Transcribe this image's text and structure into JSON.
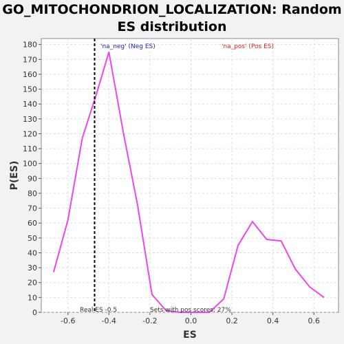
{
  "chart_data": {
    "type": "line",
    "title_line1": "GO_MITOCHONDRION_LOCALIZATION: Random",
    "title_line2": "ES distribution",
    "xlabel": "ES",
    "ylabel": "P(ES)",
    "xlim": [
      -0.73,
      0.72
    ],
    "ylim": [
      0,
      184
    ],
    "xticks": [
      -0.6,
      -0.4,
      -0.2,
      0.0,
      0.2,
      0.4,
      0.6
    ],
    "xtick_labels": [
      "-0.6",
      "-0.4",
      "-0.2",
      "0.0",
      "0.2",
      "0.4",
      "0.6"
    ],
    "yticks": [
      0,
      10,
      20,
      30,
      40,
      50,
      60,
      70,
      80,
      90,
      100,
      110,
      120,
      130,
      140,
      150,
      160,
      170,
      180
    ],
    "ytick_labels": [
      "0",
      "10",
      "20",
      "30",
      "40",
      "50",
      "60",
      "70",
      "80",
      "90",
      "100",
      "110",
      "120",
      "130",
      "140",
      "150",
      "160",
      "170",
      "180"
    ],
    "grid": true,
    "series": [
      {
        "color": "#ee44ee",
        "x": [
          -0.67,
          -0.6,
          -0.53,
          -0.46,
          -0.4,
          -0.33,
          -0.26,
          -0.19,
          -0.12,
          -0.05,
          0.02,
          0.09,
          0.16,
          0.23,
          0.3,
          0.37,
          0.44,
          0.51,
          0.58,
          0.65
        ],
        "y": [
          27,
          62,
          117,
          147,
          175,
          121,
          72,
          12,
          1,
          0,
          0,
          0,
          9,
          45,
          61,
          49,
          48,
          29,
          17,
          10
        ]
      }
    ],
    "real_es": -0.47,
    "annotations": {
      "neg_label": "'na_neg' (Neg ES)",
      "neg_color": "#2222cc",
      "pos_label": "'na_pos' (Pos ES)",
      "pos_color": "#dd2222",
      "real_es_label": "Real ES -0.5",
      "pos_scores_label": "Sets with pos scores: 27%"
    }
  }
}
